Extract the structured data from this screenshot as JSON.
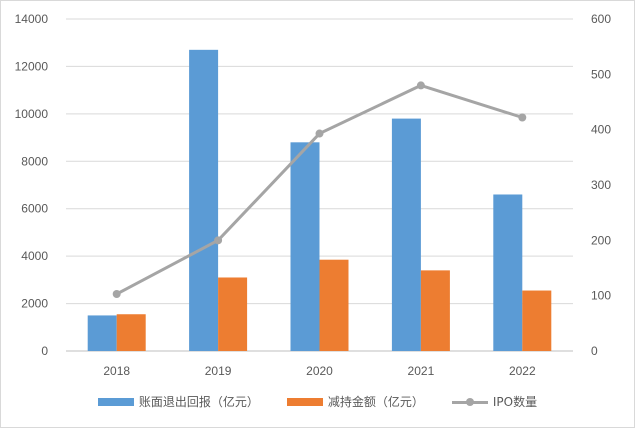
{
  "chart_data": {
    "type": "bar",
    "categories": [
      "2018",
      "2019",
      "2020",
      "2021",
      "2022"
    ],
    "series": [
      {
        "name": "账面退出回报（亿元）",
        "type": "bar",
        "axis": "left",
        "color": "#5b9bd5",
        "values": [
          1500,
          12700,
          8800,
          9800,
          6600
        ]
      },
      {
        "name": "减持金额（亿元）",
        "type": "bar",
        "axis": "left",
        "color": "#ed7d31",
        "values": [
          1550,
          3100,
          3850,
          3400,
          2550
        ]
      },
      {
        "name": "IPO数量",
        "type": "line",
        "axis": "right",
        "color": "#a5a5a5",
        "values": [
          103,
          200,
          393,
          480,
          422
        ]
      }
    ],
    "y_left": {
      "min": 0,
      "max": 14000,
      "ticks": [
        "0",
        "2000",
        "4000",
        "6000",
        "8000",
        "10000",
        "12000",
        "14000"
      ]
    },
    "y_right": {
      "min": 0,
      "max": 600,
      "ticks": [
        "0",
        "100",
        "200",
        "300",
        "400",
        "500",
        "600"
      ]
    },
    "grid": true,
    "legend_position": "bottom"
  }
}
